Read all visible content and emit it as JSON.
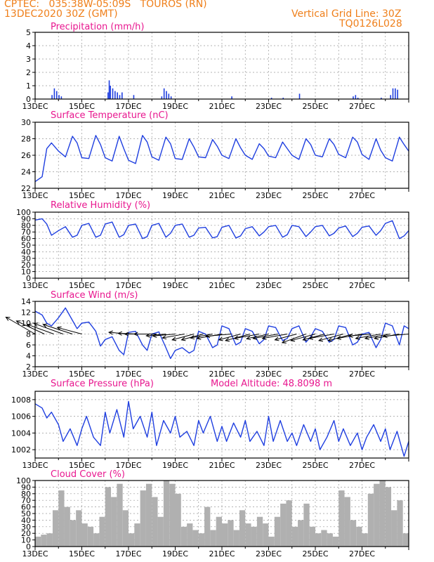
{
  "header": {
    "left_line1": "CPTEC:   035:38W-05:09S   TOUROS (RN)",
    "left_line2": "13DEC2020 30Z (GMT)",
    "right_line1": "Vertical Grid Line: 30Z",
    "right_line2": "TQ0126L028"
  },
  "x_labels": [
    "13DEC",
    "15DEC",
    "17DEC",
    "19DEC",
    "21DEC",
    "23DEC",
    "25DEC",
    "27DEC"
  ],
  "colors": {
    "line": "#1f3fe0",
    "bars": "#b0b0b0",
    "title": "#e8178f",
    "header": "#ef7f1a",
    "arrows": "#000000"
  },
  "chart_data": [
    {
      "type": "bar",
      "title": "Precipitation (mm/h)",
      "ylim": [
        0,
        5
      ],
      "yticks": [
        "0",
        "1",
        "2",
        "3",
        "4",
        "5"
      ],
      "x": [
        0.7,
        0.8,
        0.9,
        1.0,
        1.1,
        3.1,
        3.15,
        3.2,
        3.3,
        3.4,
        3.5,
        3.6,
        3.7,
        4.2,
        5.4,
        5.5,
        5.6,
        5.7,
        5.8,
        8.4,
        10.1,
        10.6,
        11.3,
        13.6,
        13.7,
        13.8,
        14.8,
        15.2,
        15.3,
        15.4,
        15.5
      ],
      "values": [
        0.3,
        0.8,
        0.6,
        0.3,
        0.2,
        0.5,
        1.4,
        1.0,
        0.8,
        0.6,
        0.5,
        0.3,
        0.5,
        0.3,
        0.2,
        0.8,
        0.6,
        0.4,
        0.2,
        0.2,
        0.1,
        0.1,
        0.4,
        0.2,
        0.3,
        0.1,
        0.1,
        0.3,
        0.8,
        0.8,
        0.7
      ]
    },
    {
      "type": "line",
      "title": "Surface Temperature (nC)",
      "ylim": [
        22,
        30
      ],
      "yticks": [
        "22",
        "24",
        "26",
        "28",
        "30"
      ],
      "x": [
        0.0,
        0.3,
        0.5,
        0.7,
        1.0,
        1.3,
        1.6,
        1.8,
        2.0,
        2.3,
        2.6,
        2.8,
        3.0,
        3.3,
        3.6,
        3.8,
        4.0,
        4.3,
        4.6,
        4.8,
        5.0,
        5.3,
        5.6,
        5.8,
        6.0,
        6.3,
        6.6,
        6.8,
        7.0,
        7.3,
        7.6,
        7.8,
        8.0,
        8.3,
        8.6,
        8.8,
        9.0,
        9.3,
        9.6,
        9.8,
        10.0,
        10.3,
        10.6,
        10.8,
        11.0,
        11.3,
        11.6,
        11.8,
        12.0,
        12.3,
        12.6,
        12.8,
        13.0,
        13.3,
        13.6,
        13.8,
        14.0,
        14.3,
        14.6,
        14.8,
        15.0,
        15.3,
        15.6,
        15.8,
        16.0
      ],
      "values": [
        22.8,
        23.4,
        26.8,
        27.5,
        26.5,
        25.8,
        28.3,
        27.5,
        25.7,
        25.6,
        28.4,
        27.3,
        25.7,
        25.3,
        28.3,
        26.8,
        25.4,
        25.0,
        28.4,
        27.6,
        25.8,
        25.4,
        28.2,
        27.4,
        25.6,
        25.5,
        28.0,
        27.0,
        25.8,
        25.7,
        27.9,
        27.1,
        26.0,
        25.6,
        28.0,
        26.9,
        26.0,
        25.5,
        27.4,
        26.8,
        25.9,
        25.7,
        27.6,
        26.8,
        26.0,
        25.5,
        28.0,
        27.3,
        26.0,
        25.8,
        28.0,
        27.3,
        26.1,
        25.7,
        28.2,
        27.6,
        26.1,
        25.5,
        28.0,
        26.6,
        25.7,
        25.3,
        28.2,
        27.3,
        26.5
      ]
    },
    {
      "type": "line",
      "title": "Relative Humidity (%)",
      "ylim": [
        0,
        100
      ],
      "yticks": [
        "0",
        "10",
        "20",
        "30",
        "40",
        "50",
        "60",
        "70",
        "80",
        "90",
        "100"
      ],
      "x": [
        0.0,
        0.3,
        0.5,
        0.7,
        1.0,
        1.3,
        1.6,
        1.8,
        2.0,
        2.3,
        2.6,
        2.8,
        3.0,
        3.3,
        3.6,
        3.8,
        4.0,
        4.3,
        4.6,
        4.8,
        5.0,
        5.3,
        5.6,
        5.8,
        6.0,
        6.3,
        6.6,
        6.8,
        7.0,
        7.3,
        7.6,
        7.8,
        8.0,
        8.3,
        8.6,
        8.8,
        9.0,
        9.3,
        9.6,
        9.8,
        10.0,
        10.3,
        10.6,
        10.8,
        11.0,
        11.3,
        11.6,
        11.8,
        12.0,
        12.3,
        12.6,
        12.8,
        13.0,
        13.3,
        13.6,
        13.8,
        14.0,
        14.3,
        14.6,
        14.8,
        15.0,
        15.3,
        15.6,
        15.8,
        16.0
      ],
      "values": [
        88,
        90,
        82,
        65,
        72,
        78,
        62,
        65,
        80,
        83,
        62,
        65,
        82,
        85,
        62,
        66,
        80,
        82,
        60,
        63,
        80,
        83,
        62,
        68,
        80,
        82,
        62,
        65,
        76,
        77,
        61,
        63,
        77,
        80,
        61,
        64,
        75,
        78,
        64,
        70,
        78,
        80,
        62,
        66,
        80,
        78,
        63,
        70,
        78,
        80,
        64,
        68,
        76,
        79,
        63,
        68,
        77,
        79,
        65,
        72,
        83,
        87,
        60,
        64,
        72
      ]
    },
    {
      "type": "line",
      "title": "Surface Wind (m/s)",
      "ylim": [
        2,
        14
      ],
      "yticks": [
        "2",
        "4",
        "6",
        "8",
        "10",
        "12",
        "14"
      ],
      "x": [
        0.0,
        0.3,
        0.5,
        0.7,
        1.0,
        1.3,
        1.6,
        1.8,
        2.0,
        2.3,
        2.6,
        2.8,
        3.0,
        3.3,
        3.6,
        3.8,
        4.0,
        4.3,
        4.6,
        4.8,
        5.0,
        5.3,
        5.6,
        5.8,
        6.0,
        6.3,
        6.6,
        6.8,
        7.0,
        7.3,
        7.6,
        7.8,
        8.0,
        8.3,
        8.6,
        8.8,
        9.0,
        9.3,
        9.6,
        9.8,
        10.0,
        10.3,
        10.6,
        10.8,
        11.0,
        11.3,
        11.6,
        11.8,
        12.0,
        12.3,
        12.6,
        12.8,
        13.0,
        13.3,
        13.6,
        13.8,
        14.0,
        14.3,
        14.6,
        14.8,
        15.0,
        15.3,
        15.6,
        15.8,
        16.0
      ],
      "values": [
        12.2,
        11.5,
        10.0,
        9.5,
        11.0,
        12.8,
        10.5,
        9.0,
        10.0,
        10.2,
        8.5,
        5.8,
        7.0,
        7.5,
        5.0,
        4.2,
        8.3,
        8.5,
        6.0,
        5.0,
        8.0,
        8.4,
        5.5,
        3.5,
        5.0,
        5.5,
        4.5,
        5.0,
        8.5,
        8.0,
        5.5,
        6.0,
        9.5,
        9.0,
        6.0,
        6.5,
        9.0,
        8.5,
        6.2,
        7.0,
        9.5,
        9.2,
        6.8,
        7.2,
        9.0,
        9.5,
        6.5,
        7.5,
        9.0,
        8.5,
        6.5,
        7.0,
        9.5,
        9.2,
        6.0,
        6.5,
        8.0,
        8.3,
        5.5,
        7.0,
        10.0,
        9.5,
        6.0,
        9.5,
        9.0
      ]
    },
    {
      "type": "line",
      "title": "Surface Pressure (hPa)",
      "annotation": "Model Altitude: 48.8098  m",
      "ylim": [
        1001,
        1009
      ],
      "yticks": [
        "1002",
        "1004",
        "1006",
        "1008"
      ],
      "x": [
        0.0,
        0.3,
        0.5,
        0.7,
        1.0,
        1.2,
        1.5,
        1.8,
        2.0,
        2.2,
        2.5,
        2.8,
        3.0,
        3.2,
        3.5,
        3.8,
        4.0,
        4.2,
        4.5,
        4.8,
        5.0,
        5.2,
        5.5,
        5.8,
        6.0,
        6.2,
        6.5,
        6.8,
        7.0,
        7.2,
        7.5,
        7.8,
        8.0,
        8.2,
        8.5,
        8.8,
        9.0,
        9.2,
        9.5,
        9.8,
        10.0,
        10.2,
        10.5,
        10.8,
        11.0,
        11.2,
        11.5,
        11.8,
        12.0,
        12.2,
        12.5,
        12.8,
        13.0,
        13.2,
        13.5,
        13.8,
        14.0,
        14.2,
        14.5,
        14.8,
        15.0,
        15.2,
        15.5,
        15.8,
        16.0
      ],
      "values": [
        1007.5,
        1007.0,
        1005.8,
        1006.5,
        1005.0,
        1003.0,
        1004.5,
        1002.5,
        1004.5,
        1006.0,
        1003.5,
        1002.5,
        1006.5,
        1004.0,
        1006.8,
        1003.5,
        1007.8,
        1004.5,
        1006.0,
        1003.5,
        1006.5,
        1002.5,
        1005.5,
        1004.0,
        1006.0,
        1003.5,
        1004.2,
        1002.5,
        1005.5,
        1004.0,
        1006.0,
        1003.0,
        1004.8,
        1003.0,
        1005.2,
        1003.5,
        1005.5,
        1003.0,
        1004.2,
        1002.5,
        1006.0,
        1003.0,
        1005.5,
        1003.0,
        1004.0,
        1002.5,
        1005.0,
        1003.0,
        1004.5,
        1002.0,
        1003.5,
        1005.5,
        1003.0,
        1004.5,
        1002.5,
        1004.0,
        1002.0,
        1003.5,
        1005.0,
        1003.0,
        1004.5,
        1002.0,
        1004.2,
        1001.2,
        1003.0
      ]
    },
    {
      "type": "bar",
      "title": "Cloud Cover (%)",
      "ylim": [
        0,
        100
      ],
      "yticks": [
        "0",
        "10",
        "20",
        "30",
        "40",
        "50",
        "60",
        "70",
        "80",
        "90",
        "100"
      ],
      "x": [
        0.0,
        0.25,
        0.5,
        0.75,
        1.0,
        1.25,
        1.5,
        1.75,
        2.0,
        2.25,
        2.5,
        2.75,
        3.0,
        3.25,
        3.5,
        3.75,
        4.0,
        4.25,
        4.5,
        4.75,
        5.0,
        5.25,
        5.5,
        5.75,
        6.0,
        6.25,
        6.5,
        6.75,
        7.0,
        7.25,
        7.5,
        7.75,
        8.0,
        8.25,
        8.5,
        8.75,
        9.0,
        9.25,
        9.5,
        9.75,
        10.0,
        10.25,
        10.5,
        10.75,
        11.0,
        11.25,
        11.5,
        11.75,
        12.0,
        12.25,
        12.5,
        12.75,
        13.0,
        13.25,
        13.5,
        13.75,
        14.0,
        14.25,
        14.5,
        14.75,
        15.0,
        15.25,
        15.5,
        15.75
      ],
      "values": [
        15,
        18,
        20,
        55,
        85,
        60,
        40,
        55,
        35,
        30,
        20,
        45,
        90,
        75,
        95,
        55,
        20,
        35,
        85,
        95,
        75,
        45,
        100,
        95,
        80,
        30,
        35,
        25,
        20,
        60,
        25,
        45,
        35,
        40,
        25,
        55,
        35,
        30,
        45,
        35,
        15,
        45,
        65,
        70,
        30,
        40,
        65,
        30,
        20,
        25,
        20,
        15,
        85,
        75,
        40,
        30,
        20,
        80,
        95,
        100,
        90,
        55,
        70,
        20
      ]
    }
  ],
  "wind_arrows": {
    "x": [
      0.0,
      0.4,
      0.8,
      1.2,
      1.6,
      2.0,
      4.0,
      4.4,
      4.8,
      5.2,
      5.6,
      6.0,
      6.4,
      6.8,
      7.2,
      7.6,
      8.0,
      8.4,
      8.8,
      9.2,
      9.6,
      10.0,
      10.4,
      10.8,
      11.2,
      11.6,
      12.0,
      12.4,
      12.8,
      13.2,
      13.6,
      14.0,
      14.4,
      14.8,
      15.2,
      15.6,
      16.0
    ],
    "speed": [
      12,
      11,
      10,
      11,
      11,
      9,
      7,
      7,
      8,
      8,
      7,
      8,
      8,
      8,
      8,
      8,
      9,
      9,
      8,
      9,
      9,
      8,
      9,
      9,
      8,
      9,
      9,
      8,
      9,
      9,
      9,
      9,
      8,
      9,
      9,
      9,
      9
    ],
    "dir_to_deg": [
      150,
      155,
      160,
      160,
      162,
      165,
      175,
      178,
      180,
      180,
      185,
      185,
      190,
      195,
      195,
      190,
      190,
      185,
      195,
      195,
      190,
      192,
      190,
      190,
      195,
      200,
      195,
      195,
      190,
      195,
      195,
      190,
      185,
      190,
      190,
      190,
      185
    ]
  }
}
